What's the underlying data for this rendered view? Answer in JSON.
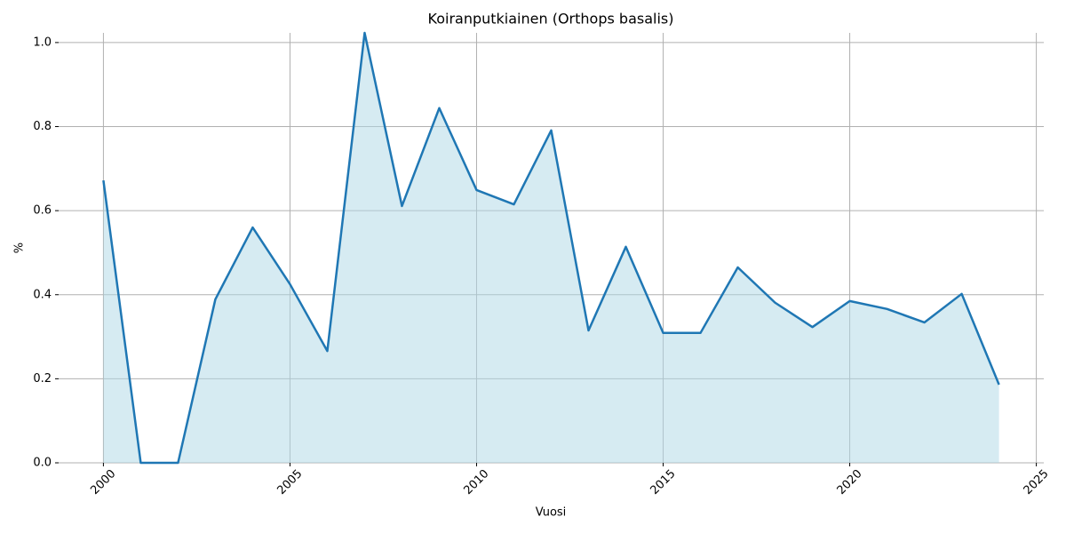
{
  "chart_data": {
    "type": "area_line",
    "title": "Koiranputkiainen (Orthops basalis)",
    "x_label": "Vuosi",
    "y_label": "%",
    "x": [
      2000,
      2001,
      2002,
      2003,
      2004,
      2005,
      2006,
      2007,
      2008,
      2009,
      2010,
      2011,
      2012,
      2013,
      2014,
      2015,
      2016,
      2017,
      2018,
      2019,
      2020,
      2021,
      2022,
      2023,
      2024
    ],
    "values": [
      0.672,
      0,
      0,
      0.389,
      0.56,
      0.425,
      0.266,
      1.023,
      0.611,
      0.844,
      0.649,
      0.615,
      0.791,
      0.315,
      0.514,
      0.309,
      0.309,
      0.465,
      0.381,
      0.323,
      0.385,
      0.366,
      0.334,
      0.402,
      0.186
    ],
    "color": "#1f77b4",
    "fill_color": "#add8e6",
    "xlim": [
      1998.8,
      2025.2
    ],
    "ylim": [
      0,
      1.023
    ],
    "xticks": [
      2000,
      2005,
      2010,
      2015,
      2020,
      2025
    ],
    "yticks": [
      {
        "value": 0,
        "label": "0.0"
      },
      {
        "value": 0.2,
        "label": "0.2"
      },
      {
        "value": 0.4,
        "label": "0.4"
      },
      {
        "value": 0.6,
        "label": "0.6"
      },
      {
        "value": 0.8,
        "label": "0.8"
      },
      {
        "value": 1.0,
        "label": "1.0"
      }
    ],
    "grid": true
  }
}
